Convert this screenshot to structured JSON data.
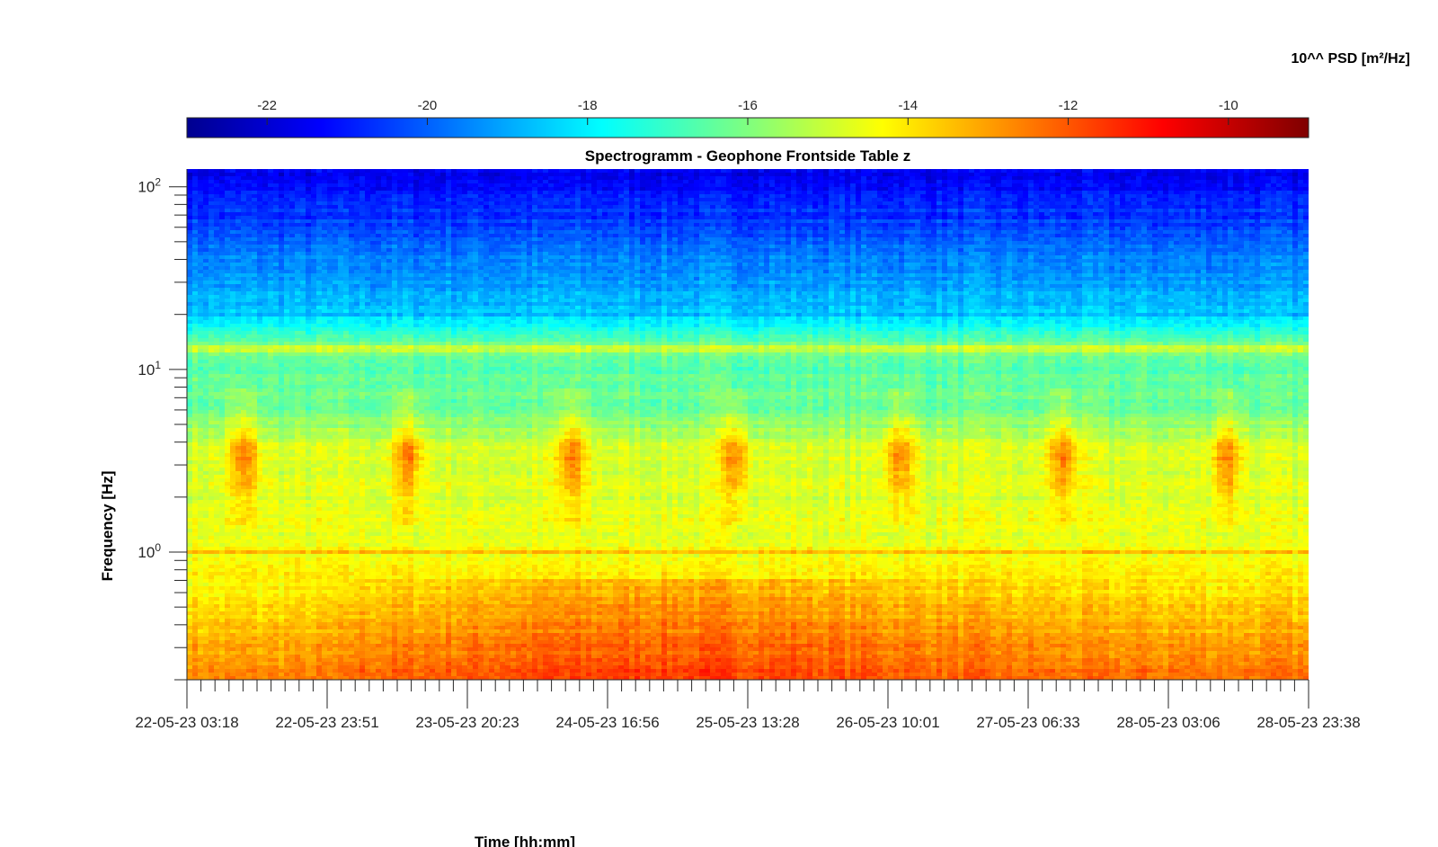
{
  "chart_data": {
    "type": "heatmap",
    "title": "Spectrogramm - Geophone Frontside Table z",
    "xlabel": "Time [hh:mm]",
    "ylabel": "Frequency [Hz]",
    "colorbar_label": "10^^ PSD [m²/Hz]",
    "colormap": "jet",
    "x_ticks": [
      "22-05-23 03:18",
      "22-05-23 23:51",
      "23-05-23 20:23",
      "24-05-23 16:56",
      "25-05-23 13:28",
      "26-05-23 10:01",
      "27-05-23 06:33",
      "28-05-23 03:06",
      "28-05-23 23:38"
    ],
    "y_scale": "log",
    "y_range_hz": [
      0.2,
      125
    ],
    "y_ticks": [
      {
        "value": 1,
        "base": "10",
        "exp": "0"
      },
      {
        "value": 10,
        "base": "10",
        "exp": "1"
      },
      {
        "value": 100,
        "base": "10",
        "exp": "2"
      }
    ],
    "colorbar_range": [
      -23,
      -9
    ],
    "colorbar_ticks": [
      "-22",
      "-20",
      "-18",
      "-16",
      "-14",
      "-12",
      "-10"
    ],
    "colorbar_tick_values": [
      -22,
      -20,
      -18,
      -16,
      -14,
      -12,
      -10
    ],
    "log10_psd_profile": {
      "frequency_hz": [
        0.2,
        0.3,
        0.5,
        0.7,
        1.0,
        2.0,
        3.5,
        6.0,
        10,
        13,
        20,
        40,
        60,
        125
      ],
      "log10_psd": [
        -12.3,
        -12.9,
        -13.5,
        -14.0,
        -14.3,
        -14.8,
        -14.7,
        -16.3,
        -16.5,
        -15.8,
        -18.6,
        -19.6,
        -20.3,
        -21.5
      ]
    },
    "daily_activity_peaks_hz_range": [
      2.0,
      8.0
    ],
    "persistent_line_hz": [
      1.0,
      12.5,
      13.2
    ],
    "grid": false
  }
}
